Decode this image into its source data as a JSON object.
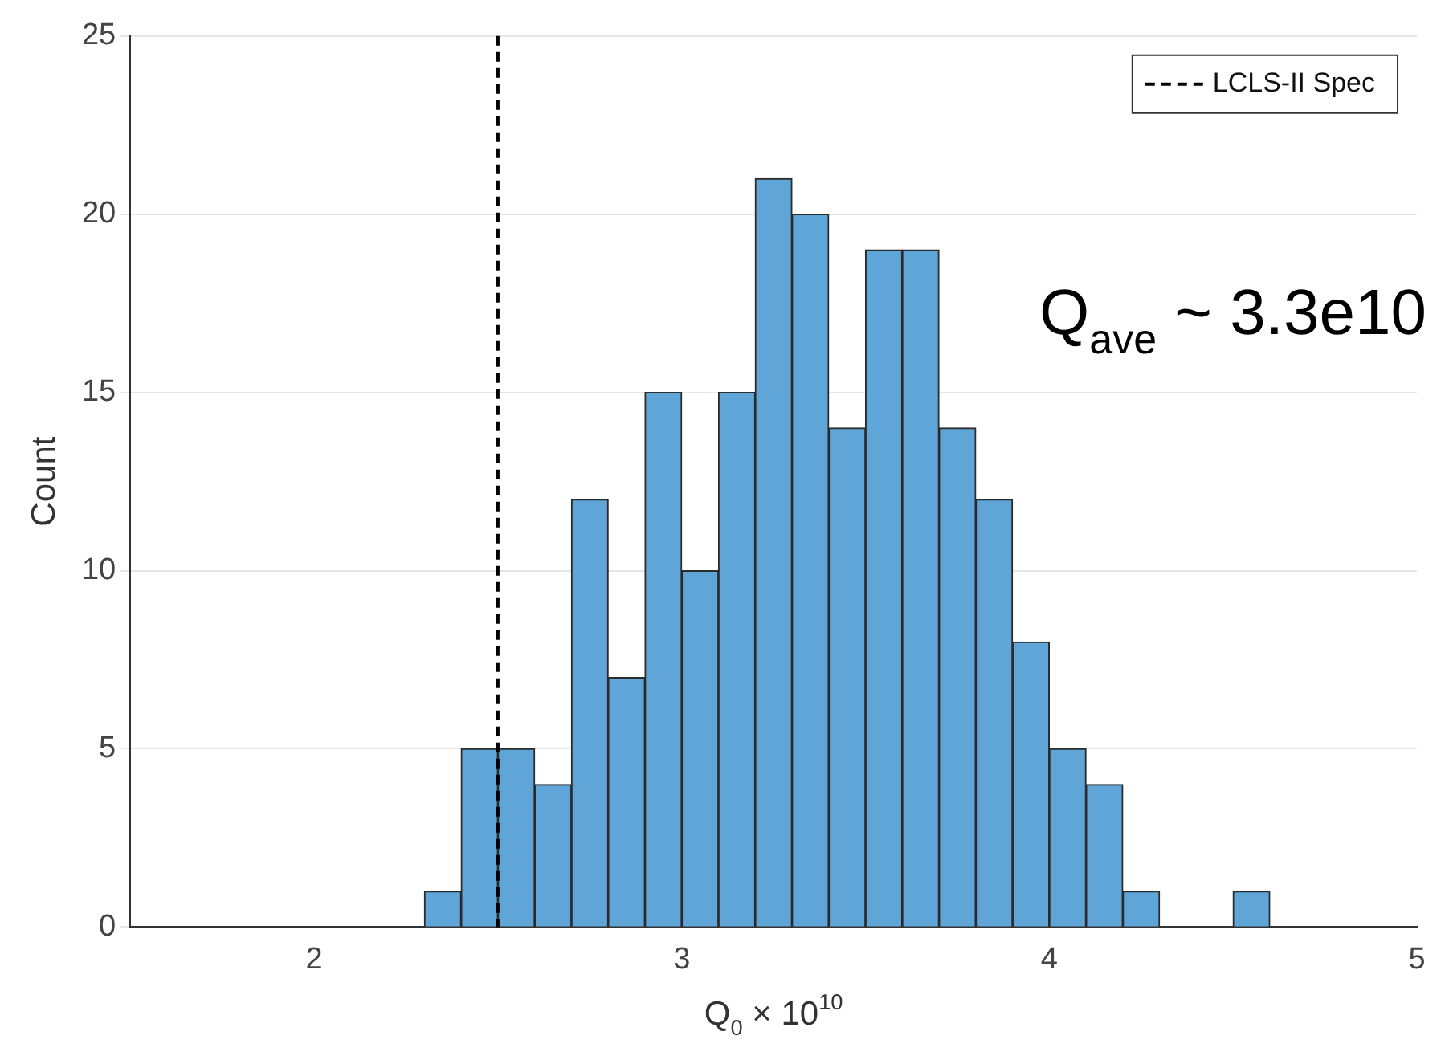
{
  "chart_data": {
    "type": "histogram",
    "xlabel": "Q$_{0}$ × 10$^{10}$",
    "ylabel": "Count",
    "bins": [
      2.3,
      2.4,
      2.5,
      2.6,
      2.7,
      2.8,
      2.9,
      3.0,
      3.1,
      3.2,
      3.3,
      3.4,
      3.5,
      3.6,
      3.7,
      3.8,
      3.9,
      4.0,
      4.1,
      4.2,
      4.3,
      4.4,
      4.5,
      4.6
    ],
    "values": [
      1,
      5,
      5,
      4,
      12,
      7,
      15,
      10,
      15,
      21,
      20,
      14,
      19,
      19,
      14,
      12,
      8,
      5,
      4,
      1,
      0,
      0,
      1
    ],
    "color": "#5fa5d8",
    "xlim": [
      1.5,
      5
    ],
    "xticks": [
      2,
      3,
      4,
      5
    ],
    "ylim": [
      0,
      25
    ],
    "yticks": [
      0,
      5,
      10,
      15,
      20,
      25
    ],
    "grid": "y",
    "legend": "top right",
    "ref_lines": [
      {
        "axis": "x",
        "value": 2.5,
        "label": "LCLS-II Spec",
        "color": "#000000",
        "line_style": "dashed"
      }
    ],
    "annotations": [
      "Q$_{ave}$ ~ 3.3e10"
    ]
  }
}
